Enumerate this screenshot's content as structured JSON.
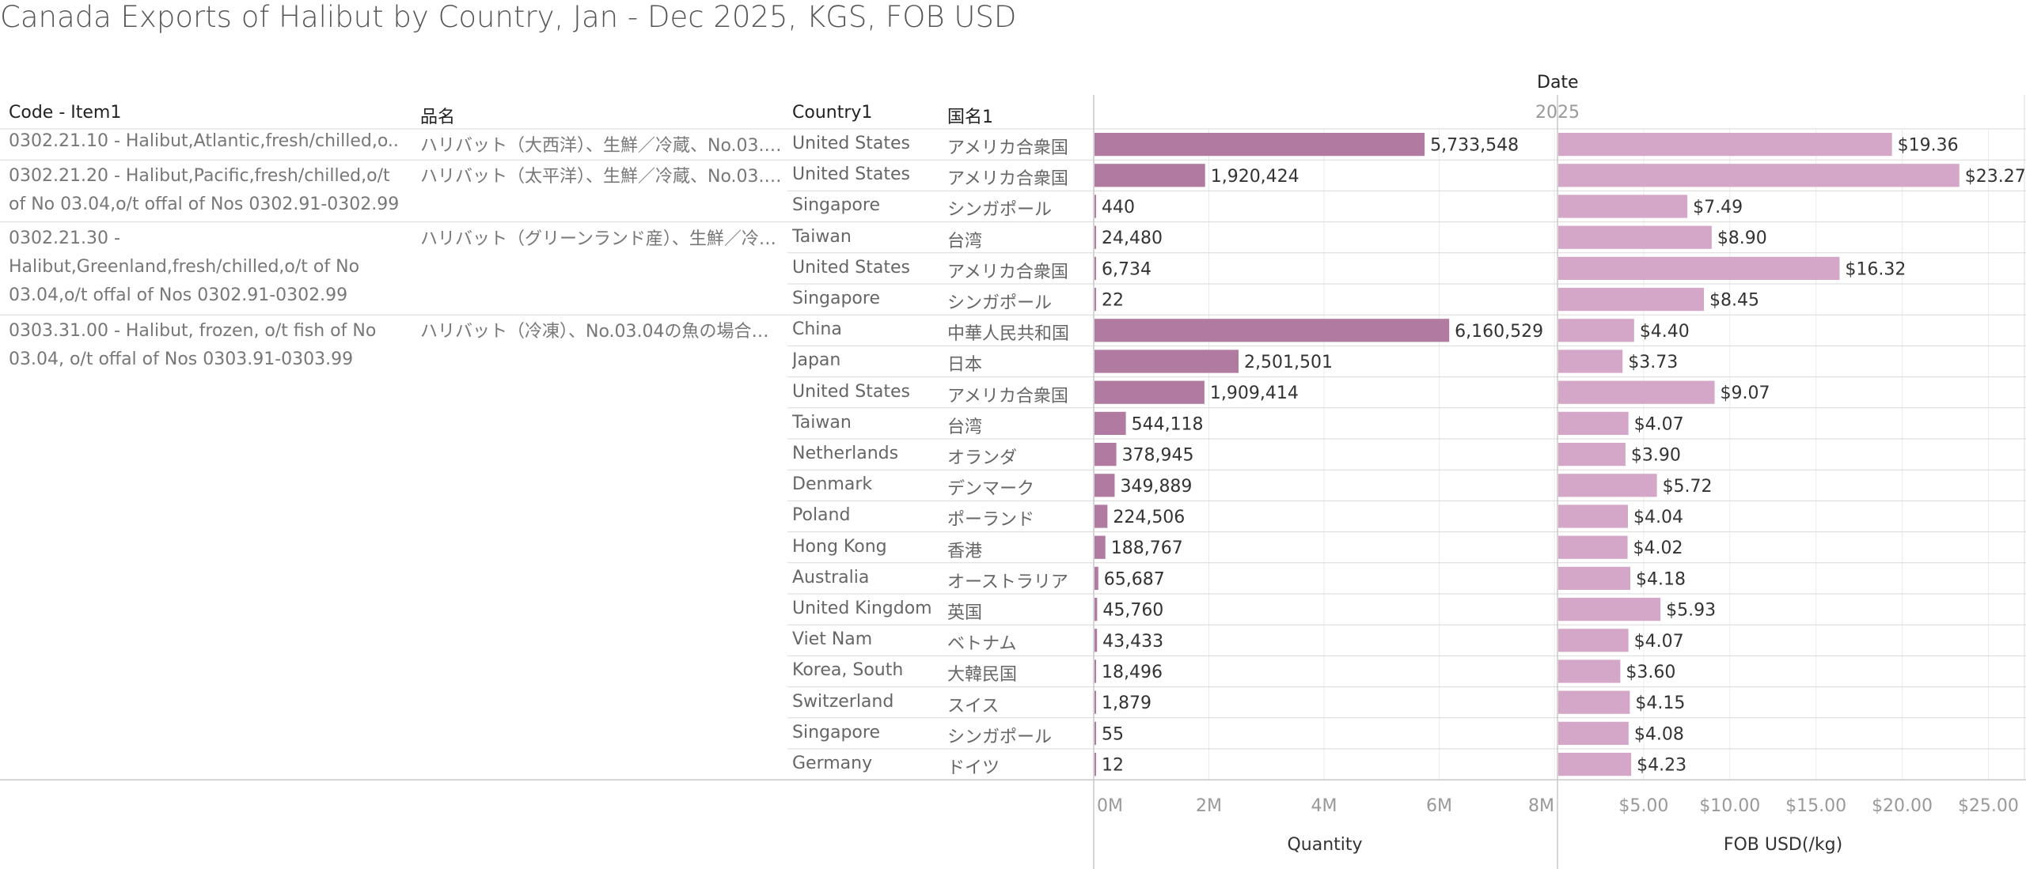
{
  "title": "Canada Exports of Halibut by Country, Jan - Dec 2025, KGS, FOB USD",
  "headers": {
    "code": "Code - Item1",
    "name_jp": "品名",
    "country": "Country1",
    "country_jp": "国名1",
    "date": "Date",
    "year": "2025"
  },
  "groups": [
    {
      "code": "0302.21.10 - Halibut,Atlantic,fresh/chilled,o..",
      "name_jp": "ハリバット（大西洋）、生鮮／冷蔵、No.03.0.."
    },
    {
      "code": "0302.21.20 - Halibut,Pacific,fresh/chilled,o/t of No 03.04,o/t offal of Nos 0302.91-0302.99",
      "name_jp": "ハリバット（太平洋）、生鮮／冷蔵、No.03.0.."
    },
    {
      "code": "0302.21.30 - Halibut,Greenland,fresh/chilled,o/t of No 03.04,o/t offal of Nos 0302.91-0302.99",
      "name_jp": "ハリバット（グリーンランド産）、生鮮／冷蔵、N.."
    },
    {
      "code": "0303.31.00 - Halibut, frozen, o/t fish of No 03.04, o/t offal of Nos 0303.91-0303.99",
      "name_jp": "ハリバット（冷凍）、No.03.04の魚の場合、N.."
    }
  ],
  "chart_data": {
    "type": "bar",
    "orientation": "horizontal",
    "rows": [
      {
        "group": 0,
        "country": "United States",
        "country_jp": "アメリカ合衆国",
        "quantity": 5733548,
        "quantity_label": "5,733,548",
        "fob": 19.36,
        "fob_label": "$19.36"
      },
      {
        "group": 1,
        "country": "United States",
        "country_jp": "アメリカ合衆国",
        "quantity": 1920424,
        "quantity_label": "1,920,424",
        "fob": 23.27,
        "fob_label": "$23.27"
      },
      {
        "group": 1,
        "country": "Singapore",
        "country_jp": "シンガポール",
        "quantity": 440,
        "quantity_label": "440",
        "fob": 7.49,
        "fob_label": "$7.49"
      },
      {
        "group": 2,
        "country": "Taiwan",
        "country_jp": "台湾",
        "quantity": 24480,
        "quantity_label": "24,480",
        "fob": 8.9,
        "fob_label": "$8.90"
      },
      {
        "group": 2,
        "country": "United States",
        "country_jp": "アメリカ合衆国",
        "quantity": 6734,
        "quantity_label": "6,734",
        "fob": 16.32,
        "fob_label": "$16.32"
      },
      {
        "group": 2,
        "country": "Singapore",
        "country_jp": "シンガポール",
        "quantity": 22,
        "quantity_label": "22",
        "fob": 8.45,
        "fob_label": "$8.45"
      },
      {
        "group": 3,
        "country": "China",
        "country_jp": "中華人民共和国",
        "quantity": 6160529,
        "quantity_label": "6,160,529",
        "fob": 4.4,
        "fob_label": "$4.40"
      },
      {
        "group": 3,
        "country": "Japan",
        "country_jp": "日本",
        "quantity": 2501501,
        "quantity_label": "2,501,501",
        "fob": 3.73,
        "fob_label": "$3.73"
      },
      {
        "group": 3,
        "country": "United States",
        "country_jp": "アメリカ合衆国",
        "quantity": 1909414,
        "quantity_label": "1,909,414",
        "fob": 9.07,
        "fob_label": "$9.07"
      },
      {
        "group": 3,
        "country": "Taiwan",
        "country_jp": "台湾",
        "quantity": 544118,
        "quantity_label": "544,118",
        "fob": 4.07,
        "fob_label": "$4.07"
      },
      {
        "group": 3,
        "country": "Netherlands",
        "country_jp": "オランダ",
        "quantity": 378945,
        "quantity_label": "378,945",
        "fob": 3.9,
        "fob_label": "$3.90"
      },
      {
        "group": 3,
        "country": "Denmark",
        "country_jp": "デンマーク",
        "quantity": 349889,
        "quantity_label": "349,889",
        "fob": 5.72,
        "fob_label": "$5.72"
      },
      {
        "group": 3,
        "country": "Poland",
        "country_jp": "ポーランド",
        "quantity": 224506,
        "quantity_label": "224,506",
        "fob": 4.04,
        "fob_label": "$4.04"
      },
      {
        "group": 3,
        "country": "Hong Kong",
        "country_jp": "香港",
        "quantity": 188767,
        "quantity_label": "188,767",
        "fob": 4.02,
        "fob_label": "$4.02"
      },
      {
        "group": 3,
        "country": "Australia",
        "country_jp": "オーストラリア",
        "quantity": 65687,
        "quantity_label": "65,687",
        "fob": 4.18,
        "fob_label": "$4.18"
      },
      {
        "group": 3,
        "country": "United Kingdom",
        "country_jp": "英国",
        "quantity": 45760,
        "quantity_label": "45,760",
        "fob": 5.93,
        "fob_label": "$5.93"
      },
      {
        "group": 3,
        "country": "Viet Nam",
        "country_jp": "ベトナム",
        "quantity": 43433,
        "quantity_label": "43,433",
        "fob": 4.07,
        "fob_label": "$4.07"
      },
      {
        "group": 3,
        "country": "Korea, South",
        "country_jp": "大韓民国",
        "quantity": 18496,
        "quantity_label": "18,496",
        "fob": 3.6,
        "fob_label": "$3.60"
      },
      {
        "group": 3,
        "country": "Switzerland",
        "country_jp": "スイス",
        "quantity": 1879,
        "quantity_label": "1,879",
        "fob": 4.15,
        "fob_label": "$4.15"
      },
      {
        "group": 3,
        "country": "Singapore",
        "country_jp": "シンガポール",
        "quantity": 55,
        "quantity_label": "55",
        "fob": 4.08,
        "fob_label": "$4.08"
      },
      {
        "group": 3,
        "country": "Germany",
        "country_jp": "ドイツ",
        "quantity": 12,
        "quantity_label": "12",
        "fob": 4.23,
        "fob_label": "$4.23"
      }
    ],
    "quantity_axis": {
      "title": "Quantity",
      "range": [
        0,
        8000000
      ],
      "ticks": [
        0,
        2000000,
        4000000,
        6000000,
        8000000
      ],
      "tick_labels": [
        "0M",
        "2M",
        "4M",
        "6M",
        "8M"
      ]
    },
    "fob_axis": {
      "title": "FOB USD(/kg)",
      "range": [
        0,
        27
      ],
      "ticks": [
        5,
        10,
        15,
        20,
        25
      ],
      "tick_labels": [
        "$5.00",
        "$10.00",
        "$15.00",
        "$20.00",
        "$25.00"
      ]
    },
    "colors": {
      "quantity_bar": "#b07aa1",
      "fob_bar": "#d4a6c8",
      "grid": "#ebebeb",
      "row_line": "#d9d9d9"
    },
    "grid": true
  }
}
